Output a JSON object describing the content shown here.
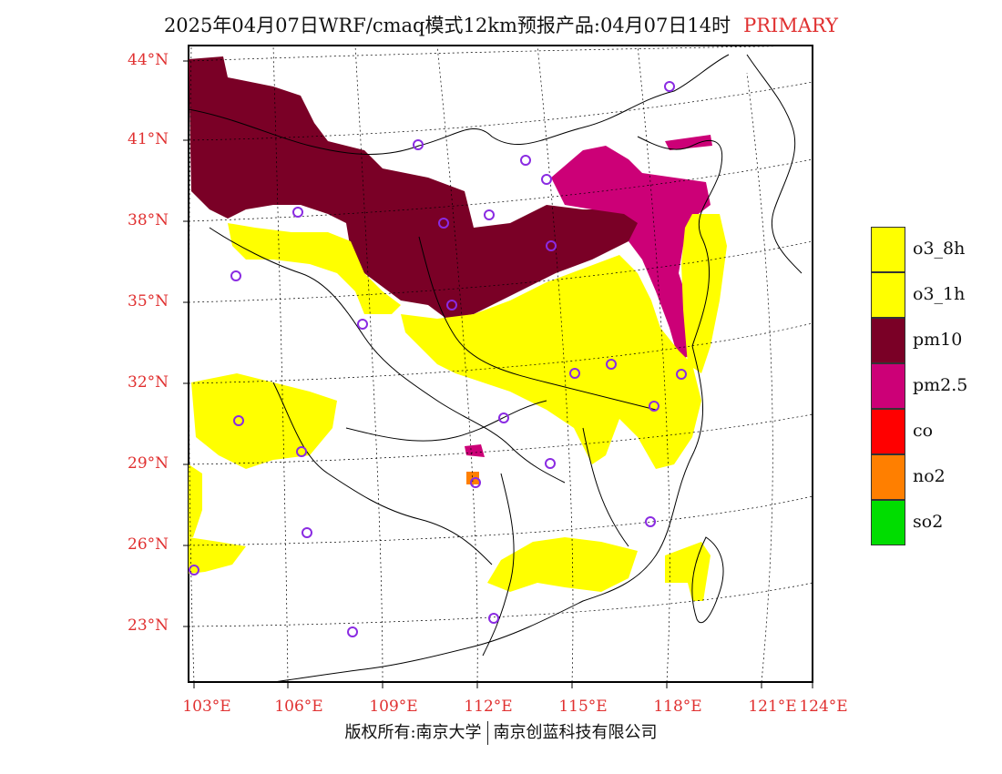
{
  "title": {
    "main": "2025年04月07日WRF/cmaq模式12km预报产品:04月07日14时",
    "tag": "PRIMARY"
  },
  "axes": {
    "lat_labels": [
      "44°N",
      "41°N",
      "38°N",
      "35°N",
      "32°N",
      "29°N",
      "26°N",
      "23°N"
    ],
    "lat_values": [
      44,
      41,
      38,
      35,
      32,
      29,
      26,
      23
    ],
    "lon_labels": [
      "103°E",
      "106°E",
      "109°E",
      "112°E",
      "115°E",
      "118°E",
      "121°E",
      "124°E"
    ],
    "lon_values": [
      103,
      106,
      109,
      112,
      115,
      118,
      121,
      124
    ]
  },
  "legend": [
    {
      "label": "o3_8h",
      "color": "#ffff00"
    },
    {
      "label": "o3_1h",
      "color": "#ffff00"
    },
    {
      "label": "pm10",
      "color": "#7a0026"
    },
    {
      "label": "pm2.5",
      "color": "#cc0077"
    },
    {
      "label": "co",
      "color": "#ff0000"
    },
    {
      "label": "no2",
      "color": "#ff7f00"
    },
    {
      "label": "so2",
      "color": "#00dd00"
    }
  ],
  "footer": {
    "left": "版权所有:南京大学",
    "right": "南京创蓝科技有限公司"
  },
  "colors": {
    "axis_label": "#e03030",
    "station_marker": "#8a2be2"
  }
}
